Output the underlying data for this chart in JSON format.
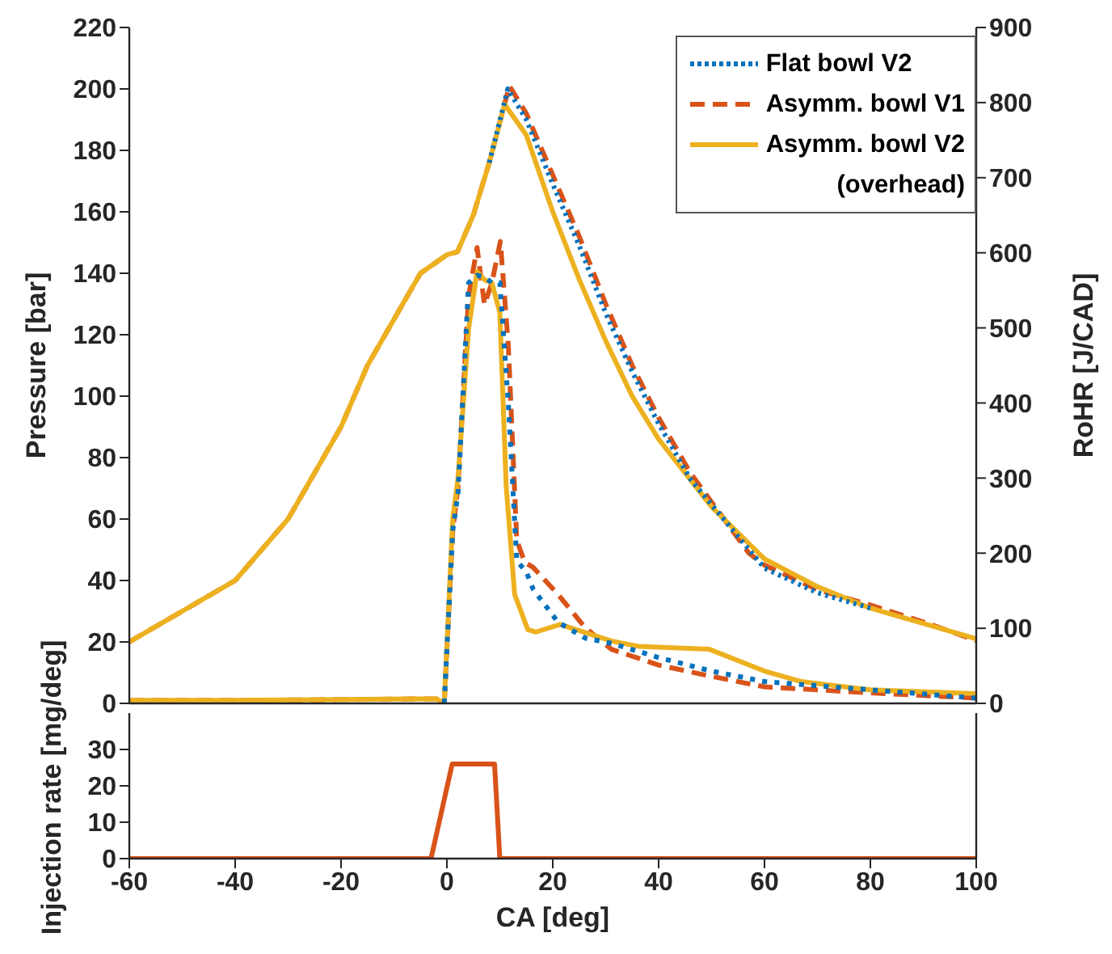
{
  "chart_data": [
    {
      "type": "line",
      "ylabel": "Pressure [bar]",
      "y2label": "RoHR [J/CAD]",
      "xlim": [
        -60,
        100
      ],
      "xticks": [
        -60,
        -40,
        -20,
        0,
        20,
        40,
        60,
        80,
        100
      ],
      "ylim": [
        0,
        220
      ],
      "yticks": [
        0,
        20,
        40,
        60,
        80,
        100,
        120,
        140,
        160,
        180,
        200,
        220
      ],
      "y2lim": [
        0,
        900
      ],
      "y2ticks": [
        0,
        100,
        200,
        300,
        400,
        500,
        600,
        700,
        800,
        900
      ],
      "grid": false,
      "legend": "top right",
      "marker": "none",
      "tick_labels": "y",
      "series": [
        {
          "name": "Flat bowl V2",
          "color": "#0072bd",
          "line_style": "dotted",
          "x": [
            8,
            11.5,
            15,
            20,
            25,
            30,
            35,
            40,
            46,
            60,
            70,
            80
          ],
          "values": [
            176,
            200,
            190,
            169,
            149,
            127,
            108,
            91,
            73,
            44,
            36,
            31
          ]
        },
        {
          "name": "Asymm. bowl V1",
          "color": "#d95319",
          "line_style": "dashed",
          "x": [
            -60,
            -50,
            -40,
            -30,
            -20,
            -15,
            -10,
            -5,
            0,
            2,
            5,
            8,
            11.8,
            15,
            20,
            25,
            30,
            35,
            40,
            46,
            57,
            60,
            70,
            80,
            90,
            100
          ],
          "values": [
            20,
            30,
            40,
            60,
            90,
            110,
            125,
            140,
            146,
            147,
            159,
            176,
            201,
            192,
            172,
            152,
            130,
            110,
            93,
            75,
            49,
            45,
            37,
            32,
            26.5,
            20.5
          ]
        },
        {
          "name": "Asymm. bowl V2\n(overhead)",
          "color": "#edb120",
          "line_style": "solid",
          "x": [
            -60,
            -50,
            -40,
            -30,
            -20,
            -15,
            -10,
            -5,
            0,
            2,
            5,
            8,
            10.9,
            15,
            20,
            25,
            30,
            35,
            40,
            50,
            60,
            70,
            80,
            90,
            100
          ],
          "values": [
            20,
            30,
            40,
            60,
            90,
            110,
            125,
            140,
            146,
            147,
            159,
            176,
            195,
            185,
            160,
            138,
            118,
            100,
            86,
            64,
            47,
            38,
            31,
            26,
            21
          ]
        },
        {
          "color": "#0072bd",
          "line_style": "dotted",
          "axis": "y2",
          "x": [
            -0.5,
            1.1,
            2.1,
            4.1,
            5.7,
            7.1,
            8.5,
            10,
            11.6,
            13.2,
            15,
            16.3,
            21,
            26.1,
            31.1,
            40,
            50,
            60,
            80,
            100
          ],
          "values": [
            0,
            230,
            280,
            560,
            570,
            568,
            560,
            560,
            400,
            190,
            175,
            152,
            108,
            87,
            80,
            61,
            43,
            29,
            18,
            7
          ]
        },
        {
          "color": "#d95319",
          "line_style": "dashed",
          "axis": "y2",
          "x": [
            -60,
            -40,
            -20,
            -5,
            -2,
            -0.5,
            1.1,
            2.1,
            4.1,
            5.7,
            7.1,
            8.5,
            10.1,
            11.6,
            13.2,
            14.7,
            16.3,
            21,
            26.1,
            31.1,
            40,
            50,
            60,
            80,
            100
          ],
          "values": [
            4,
            4,
            5,
            6,
            6,
            0,
            230,
            289,
            542,
            607,
            531,
            560,
            615,
            477,
            217,
            188,
            181,
            145,
            101,
            72,
            51,
            36,
            22,
            14,
            7
          ]
        },
        {
          "color": "#edb120",
          "line_style": "solid",
          "axis": "y2",
          "x": [
            -60,
            -40,
            -20,
            -5,
            -2,
            -0.5,
            1.1,
            2.1,
            4.1,
            5.7,
            7.1,
            8.5,
            10,
            11.2,
            12.8,
            15.3,
            16.8,
            21.4,
            31.1,
            36.2,
            49.6,
            60,
            67,
            80,
            100
          ],
          "values": [
            4,
            4,
            5,
            6,
            6,
            0,
            246,
            300,
            499,
            575,
            564,
            560,
            520,
            289,
            145,
            98,
            95,
            105,
            83,
            76,
            72,
            43,
            29,
            18,
            13
          ]
        }
      ]
    },
    {
      "type": "line",
      "xlabel": "CA [deg]",
      "ylabel": "Injection rate [mg/deg]",
      "xlim": [
        -60,
        100
      ],
      "xticks": [
        -60,
        -40,
        -20,
        0,
        20,
        40,
        60,
        80,
        100
      ],
      "ylim": [
        0,
        40
      ],
      "yticks": [
        0,
        10,
        20,
        30
      ],
      "grid": false,
      "legend": false,
      "marker": "none",
      "series": [
        {
          "color": "#d95319",
          "line_style": "solid",
          "x": [
            -60,
            -3,
            1,
            9,
            10,
            100
          ],
          "values": [
            0,
            0,
            26,
            26,
            0,
            0
          ]
        }
      ]
    }
  ]
}
